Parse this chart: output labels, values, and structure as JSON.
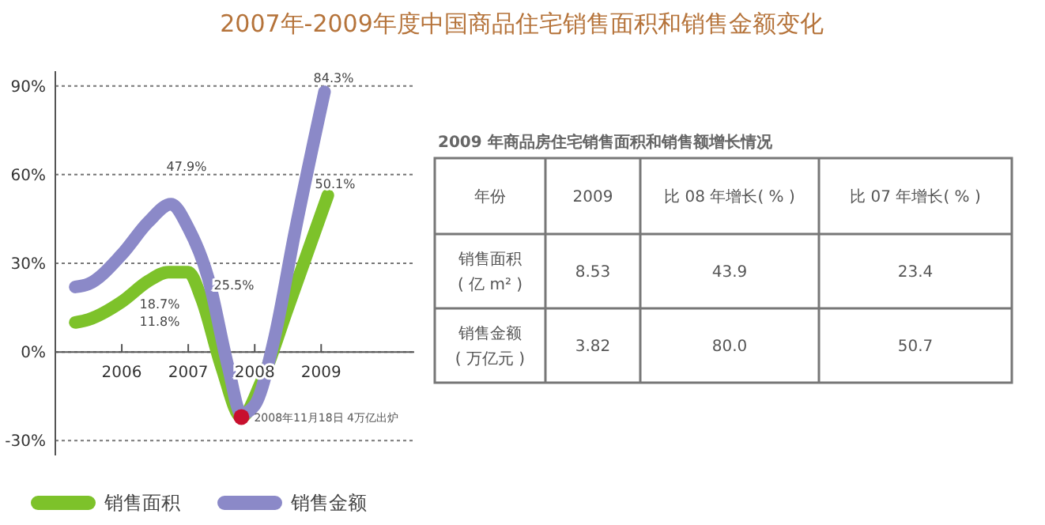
{
  "chart_data": [
    {
      "type": "line",
      "title": "2007年-2009年度中国商品住宅销售面积和销售金额变化",
      "xlim": [
        2005,
        2010.4
      ],
      "xticks": [
        2006,
        2007,
        2008,
        2009
      ],
      "ylim": [
        -35,
        95
      ],
      "yticks": [
        {
          "value": -30,
          "label": "-30%"
        },
        {
          "value": 0,
          "label": "0%"
        },
        {
          "value": 30,
          "label": "30%"
        },
        {
          "value": 60,
          "label": "60%"
        },
        {
          "value": 90,
          "label": "90%"
        }
      ],
      "grid": "y",
      "legend": "bottom",
      "line_style": "solid",
      "marker": "none",
      "series": [
        {
          "name": "销售面积",
          "color": "#7dc22a",
          "x": [
            2005.3,
            2005.5,
            2006.0,
            2006.4,
            2006.7,
            2007.0,
            2007.2,
            2007.5,
            2007.8,
            2008.1,
            2008.5,
            2009.1
          ],
          "values": [
            10,
            11,
            17,
            24,
            27,
            27,
            18,
            -5,
            -22,
            -10,
            15,
            53
          ]
        },
        {
          "name": "销售金额",
          "color": "#8b89c8",
          "x": [
            2005.3,
            2005.5,
            2006.0,
            2006.4,
            2006.74,
            2007.0,
            2007.3,
            2007.6,
            2007.8,
            2008.0,
            2008.3,
            2008.6,
            2009.05
          ],
          "values": [
            22,
            23,
            33,
            44,
            50,
            42,
            25,
            -5,
            -21,
            -18,
            5,
            40,
            88
          ]
        }
      ],
      "annotations": [
        "47.9%",
        "18.7%",
        "11.8%",
        "25.5%",
        "84.3%",
        "50.1%",
        {
          "text": "2008年11月18日 4万亿出炉",
          "x": 2007.8,
          "y": -22
        }
      ]
    },
    {
      "type": "other",
      "title": "2009 年商品房住宅销售面积和销售额增长情况",
      "annotations": [
        "年份",
        "2009",
        "比 08 年增长( % )",
        "比 07 年增长( % )",
        "销售面积\n( 亿 m² )",
        "8.53",
        "43.9",
        "23.4",
        "销售金额\n( 万亿元 )",
        "3.82",
        "80.0",
        "50.7"
      ]
    }
  ]
}
